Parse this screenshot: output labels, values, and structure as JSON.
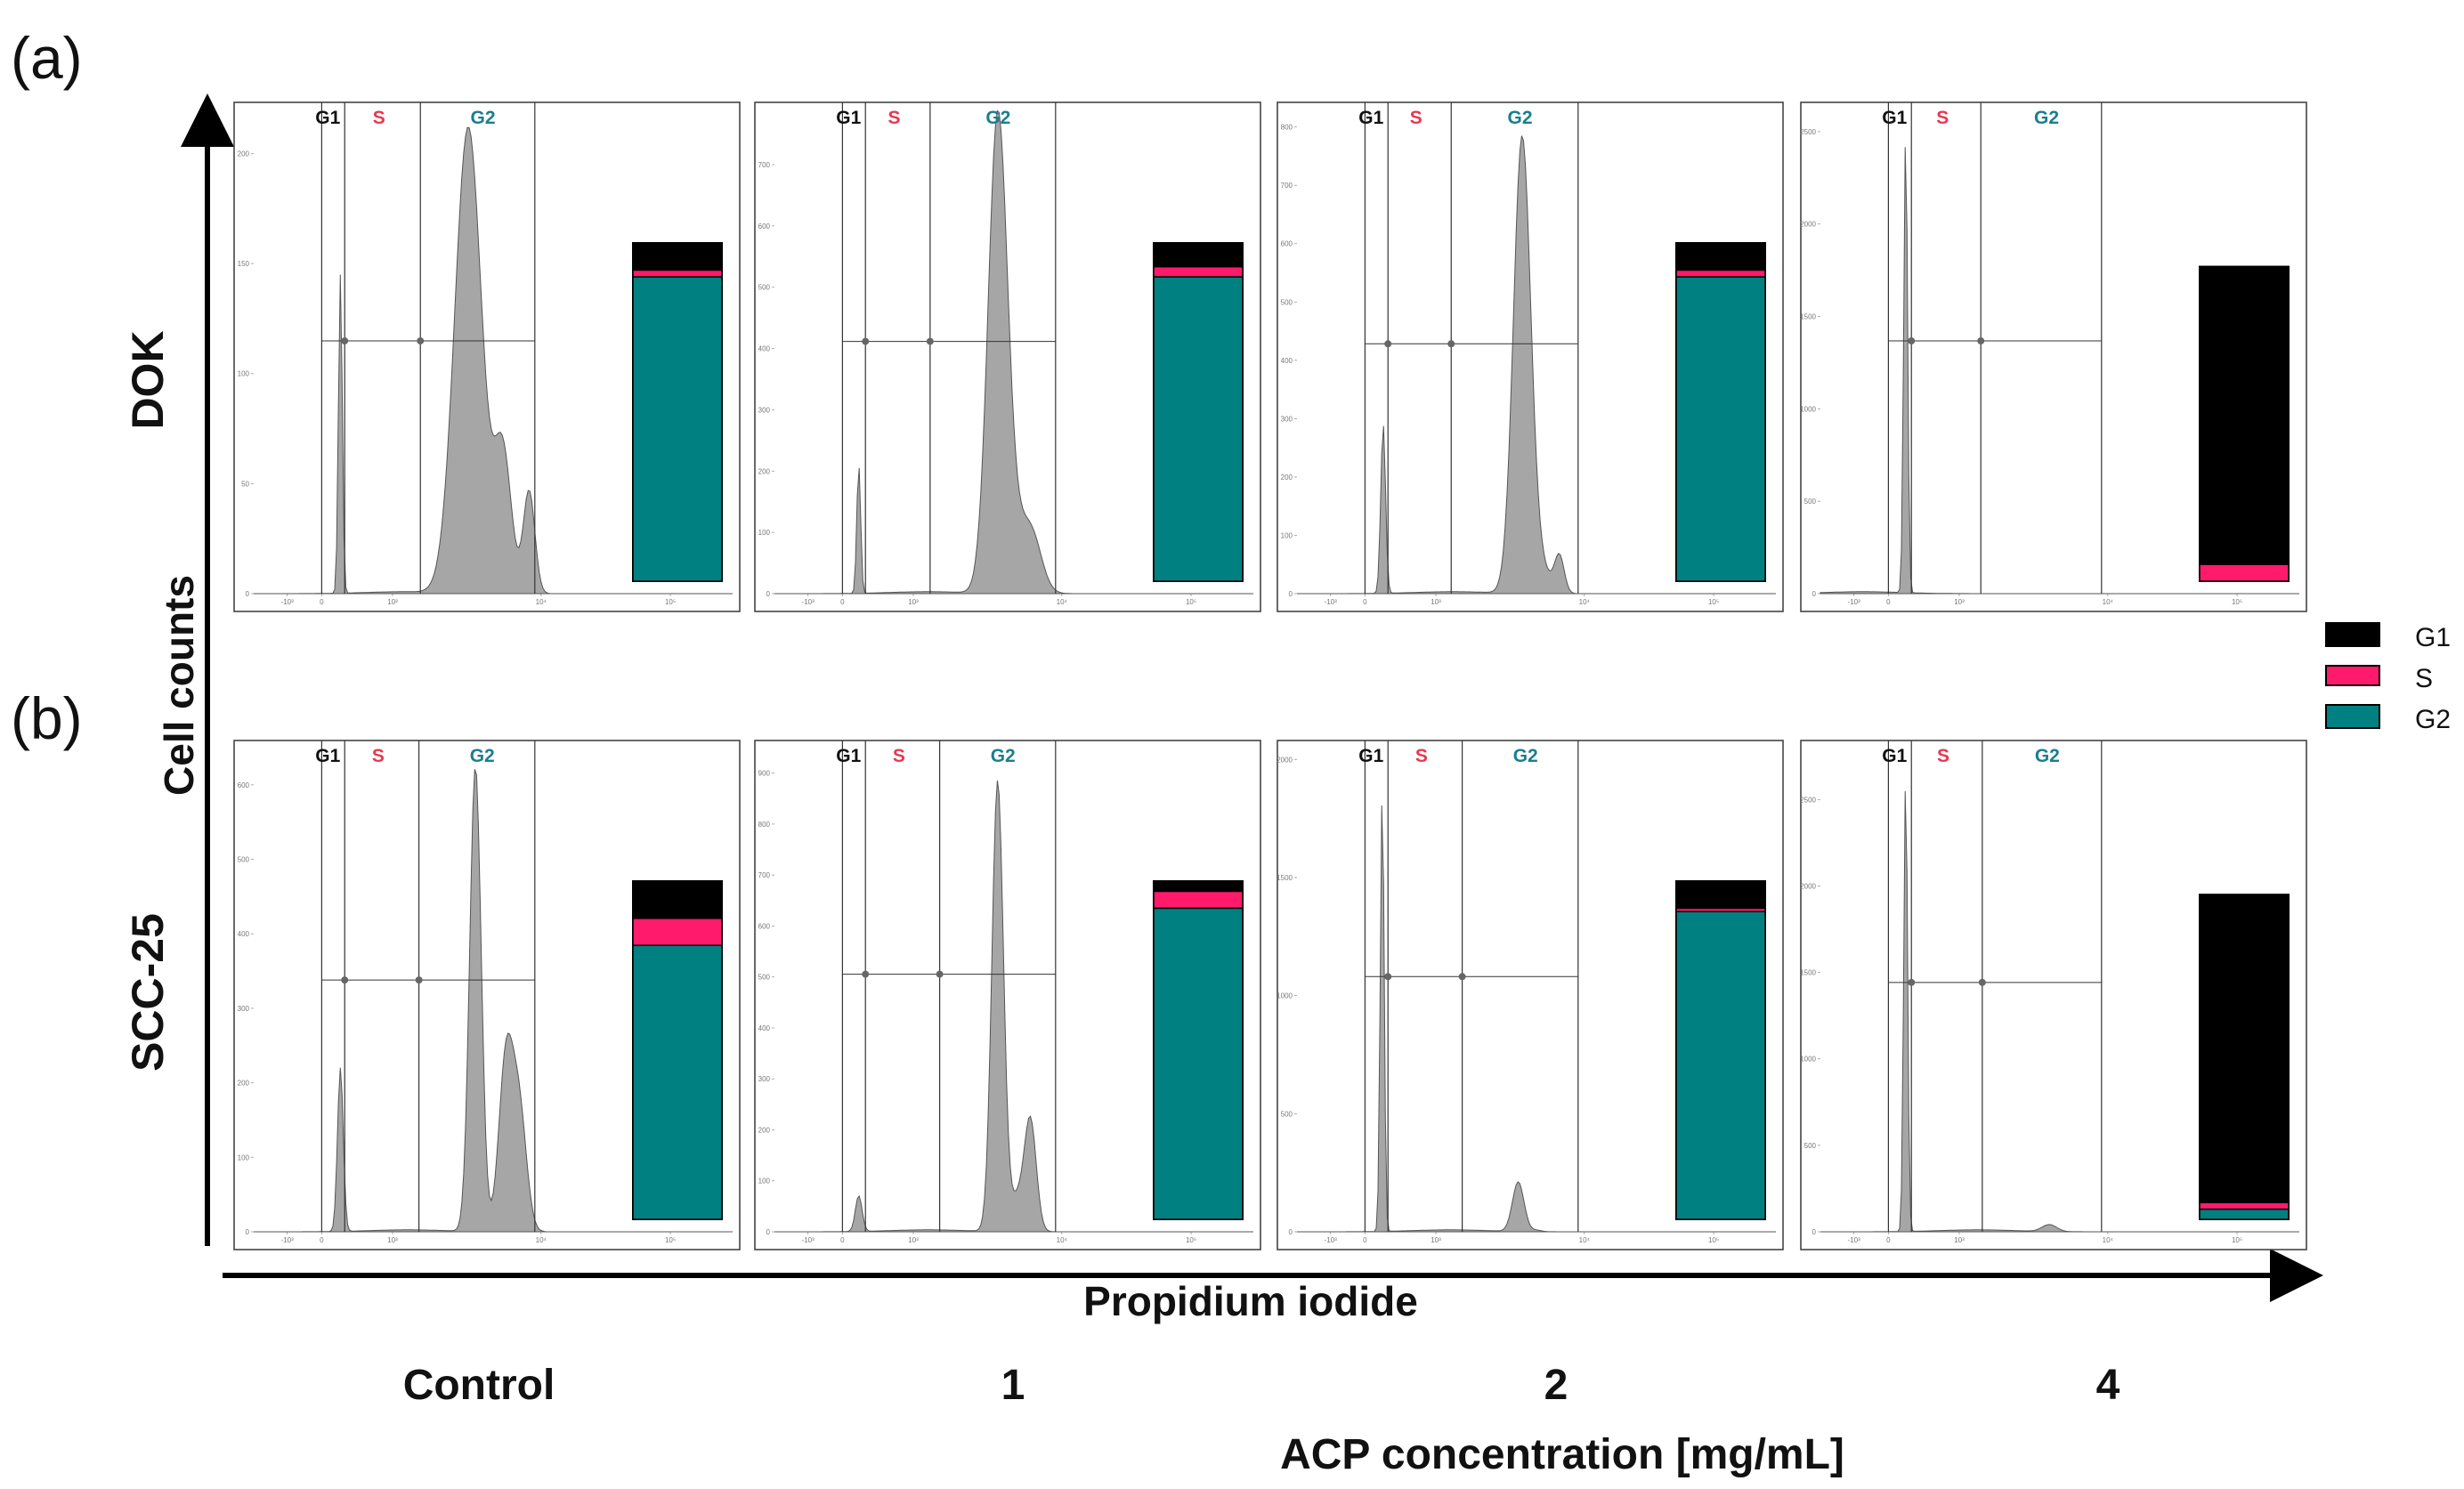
{
  "figure": {
    "panel_labels": [
      "(a)",
      "(b)"
    ],
    "row_labels": [
      "DOK",
      "SCC-25"
    ],
    "y_axis_label": "Cell counts",
    "x_axis_label": "Propidium iodide",
    "conditions_label": "ACP concentration [mg/mL]",
    "conditions": [
      "Control",
      "1",
      "2",
      "4"
    ]
  },
  "chart_data": {
    "type": "area",
    "title": "",
    "xlabel": "Propidium iodide",
    "ylabel": "Cell counts",
    "gates": [
      "G1",
      "S",
      "G2"
    ],
    "gate_colors": {
      "G1": "#111111",
      "S": "#e8384f",
      "G2": "#1a7f8e"
    },
    "x_ticks": [
      "-10³",
      "0",
      "10³",
      "10⁴",
      "10⁵"
    ],
    "legend": {
      "position": "right",
      "entries": [
        {
          "label": "G1",
          "color": "#000000"
        },
        {
          "label": "S",
          "color": "#ff1a6c"
        },
        {
          "label": "G2",
          "color": "#008080"
        }
      ]
    },
    "panels": [
      {
        "cell_line": "DOK",
        "concentration": "Control",
        "y_ticks": [
          "0",
          "50",
          "100",
          "150",
          "200"
        ],
        "y_max": 220,
        "peaks": {
          "G1": 145,
          "G2": 212
        },
        "phase_percent": {
          "G1": 8,
          "S": 2,
          "G2": 90
        }
      },
      {
        "cell_line": "DOK",
        "concentration": "1",
        "y_ticks": [
          "0",
          "100",
          "200",
          "300",
          "400",
          "500",
          "600",
          "700"
        ],
        "y_max": 790,
        "peaks": {
          "G1": 210,
          "G2": 750
        },
        "phase_percent": {
          "G1": 7,
          "S": 3,
          "G2": 90
        }
      },
      {
        "cell_line": "DOK",
        "concentration": "2",
        "y_ticks": [
          "0",
          "100",
          "200",
          "300",
          "400",
          "500",
          "600",
          "700",
          "800"
        ],
        "y_max": 830,
        "peaks": {
          "G1": 290,
          "G2": 780
        },
        "phase_percent": {
          "G1": 8,
          "S": 2,
          "G2": 90
        }
      },
      {
        "cell_line": "DOK",
        "concentration": "4",
        "y_ticks": [
          "0",
          "500",
          "1000",
          "1500",
          "2000",
          "2500"
        ],
        "y_max": 2620,
        "peaks": {
          "G1": 2500,
          "G2": 0
        },
        "phase_percent": {
          "G1": 88,
          "S": 5,
          "G2": 0
        }
      },
      {
        "cell_line": "SCC-25",
        "concentration": "Control",
        "y_ticks": [
          "0",
          "100",
          "200",
          "300",
          "400",
          "500",
          "600"
        ],
        "y_max": 650,
        "peaks": {
          "G1": 220,
          "G2": 625
        },
        "phase_percent": {
          "G1": 11,
          "S": 8,
          "G2": 81
        }
      },
      {
        "cell_line": "SCC-25",
        "concentration": "1",
        "y_ticks": [
          "0",
          "100",
          "200",
          "300",
          "400",
          "500",
          "600",
          "700",
          "800",
          "900"
        ],
        "y_max": 950,
        "peaks": {
          "G1": 70,
          "G2": 880
        },
        "phase_percent": {
          "G1": 3,
          "S": 5,
          "G2": 92
        }
      },
      {
        "cell_line": "SCC-25",
        "concentration": "2",
        "y_ticks": [
          "0",
          "500",
          "1000",
          "1500",
          "2000"
        ],
        "y_max": 2050,
        "peaks": {
          "G1": 1870,
          "G2": 210
        },
        "phase_percent": {
          "G1": 8,
          "S": 1,
          "G2": 91
        }
      },
      {
        "cell_line": "SCC-25",
        "concentration": "4",
        "y_ticks": [
          "0",
          "500",
          "1000",
          "1500",
          "2000",
          "2500"
        ],
        "y_max": 2800,
        "peaks": {
          "G1": 2640,
          "G2": 40
        },
        "phase_percent": {
          "G1": 91,
          "S": 2,
          "G2": 3
        }
      }
    ]
  }
}
